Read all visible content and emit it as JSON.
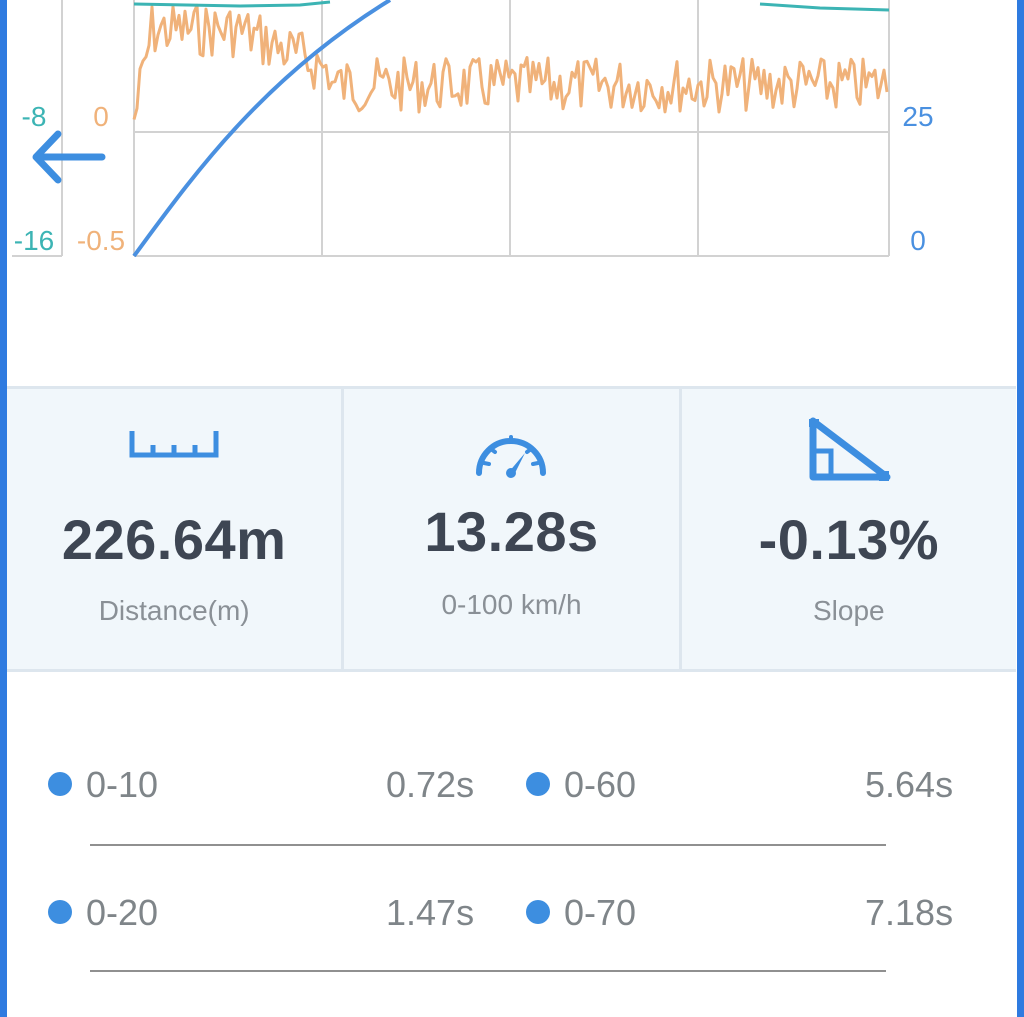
{
  "chart": {
    "left_axis_outer_ticks": [
      "-8",
      "-16"
    ],
    "left_axis_inner_ticks": [
      "0",
      "-0.5"
    ],
    "right_axis_ticks": [
      "25",
      "0"
    ],
    "colors": {
      "speed": "#4a90e0",
      "accel": "#f0b27a",
      "slope": "#3cb4b4",
      "grid": "#d2d2d2"
    }
  },
  "nav": {
    "back_icon": "arrow-left-icon"
  },
  "stats": [
    {
      "icon": "ruler-icon",
      "value": "226.64m",
      "label": "Distance(m)"
    },
    {
      "icon": "speedometer-icon",
      "value": "13.28s",
      "label": "0-100 km/h"
    },
    {
      "icon": "slope-icon",
      "value": "-0.13%",
      "label": "Slope"
    }
  ],
  "splits": [
    {
      "label": "0-10",
      "time": "0.72s"
    },
    {
      "label": "0-60",
      "time": "5.64s"
    },
    {
      "label": "0-20",
      "time": "1.47s"
    },
    {
      "label": "0-70",
      "time": "7.18s"
    }
  ]
}
